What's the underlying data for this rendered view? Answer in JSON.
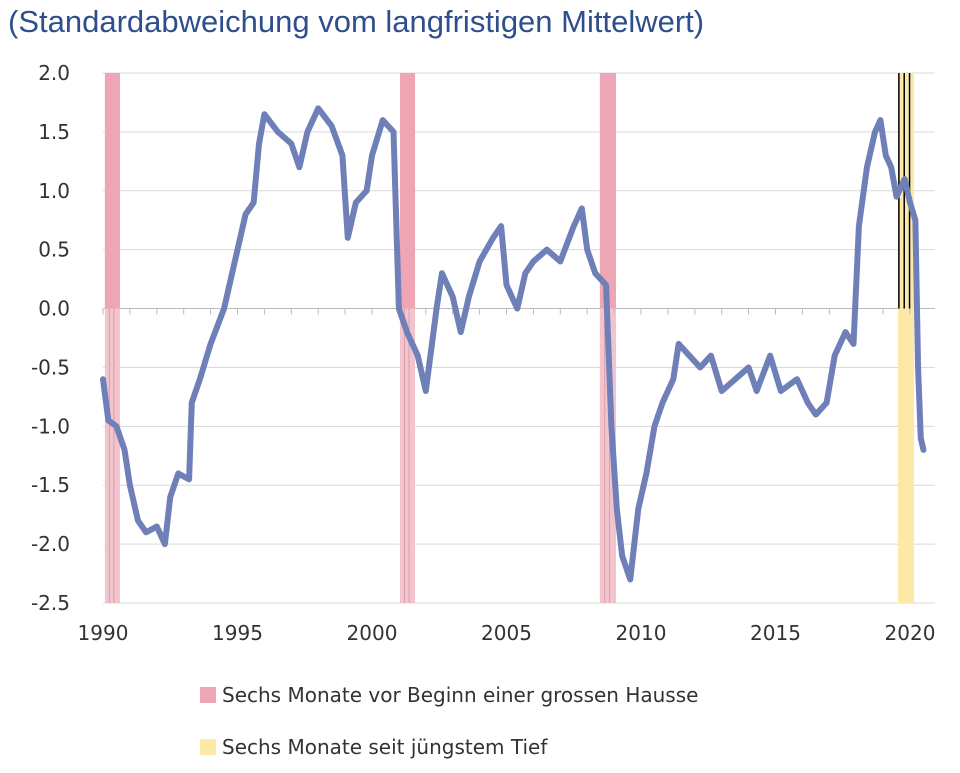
{
  "chart_data": {
    "type": "line",
    "title": "(Standardabweichung vom langfristigen Mittelwert)",
    "xlabel": "",
    "ylabel": "",
    "xlim": [
      1990,
      2020.9
    ],
    "ylim": [
      -2.5,
      2.0
    ],
    "x_ticks": [
      "1990",
      "1995",
      "2000",
      "2005",
      "2010",
      "2015",
      "2020"
    ],
    "y_ticks": [
      "2.0",
      "1.5",
      "1.0",
      "0.5",
      "0.0",
      "-0.5",
      "-1.0",
      "-1.5",
      "-2.0",
      "-2.5"
    ],
    "grid": "horizontal",
    "line_color": "#6f7fb8",
    "series": [
      {
        "x": [
          1990.0,
          1990.2,
          1990.5,
          1990.8,
          1991.0,
          1991.3,
          1991.6,
          1992.0,
          1992.3,
          1992.5,
          1992.8,
          1993.2,
          1993.3,
          1993.6,
          1994.0,
          1994.5,
          1995.0,
          1995.3,
          1995.6,
          1995.8,
          1996.0,
          1996.5,
          1997.0,
          1997.3,
          1997.6,
          1998.0,
          1998.5,
          1998.9,
          1999.1,
          1999.4,
          1999.8,
          2000.0,
          2000.4,
          2000.8,
          2001.0,
          2001.3,
          2001.7,
          2002.0,
          2002.4,
          2002.6,
          2003.0,
          2003.3,
          2003.6,
          2004.0,
          2004.5,
          2004.8,
          2005.0,
          2005.4,
          2005.7,
          2006.0,
          2006.5,
          2007.0,
          2007.5,
          2007.8,
          2008.0,
          2008.3,
          2008.7,
          2008.9,
          2009.1,
          2009.3,
          2009.6,
          2009.9,
          2010.2,
          2010.5,
          2010.8,
          2011.2,
          2011.4,
          2011.8,
          2012.2,
          2012.6,
          2013.0,
          2013.5,
          2014.0,
          2014.3,
          2014.8,
          2015.2,
          2015.8,
          2016.2,
          2016.5,
          2016.9,
          2017.2,
          2017.6,
          2017.9,
          2018.1,
          2018.4,
          2018.7,
          2018.9,
          2019.1,
          2019.3,
          2019.5,
          2019.8,
          2020.0,
          2020.2,
          2020.3,
          2020.4,
          2020.5
        ],
        "y": [
          -0.6,
          -0.95,
          -1.0,
          -1.2,
          -1.5,
          -1.8,
          -1.9,
          -1.85,
          -2.0,
          -1.6,
          -1.4,
          -1.45,
          -0.8,
          -0.6,
          -0.3,
          0.0,
          0.5,
          0.8,
          0.9,
          1.4,
          1.65,
          1.5,
          1.4,
          1.2,
          1.5,
          1.7,
          1.55,
          1.3,
          0.6,
          0.9,
          1.0,
          1.3,
          1.6,
          1.5,
          0.0,
          -0.2,
          -0.4,
          -0.7,
          0.0,
          0.3,
          0.1,
          -0.2,
          0.1,
          0.4,
          0.6,
          0.7,
          0.2,
          0.0,
          0.3,
          0.4,
          0.5,
          0.4,
          0.7,
          0.85,
          0.5,
          0.3,
          0.2,
          -1.0,
          -1.7,
          -2.1,
          -2.3,
          -1.7,
          -1.4,
          -1.0,
          -0.8,
          -0.6,
          -0.3,
          -0.4,
          -0.5,
          -0.4,
          -0.7,
          -0.6,
          -0.5,
          -0.7,
          -0.4,
          -0.7,
          -0.6,
          -0.8,
          -0.9,
          -0.8,
          -0.4,
          -0.2,
          -0.3,
          0.7,
          1.2,
          1.5,
          1.6,
          1.3,
          1.2,
          0.95,
          1.1,
          0.9,
          0.75,
          -0.5,
          -1.1,
          -1.2
        ]
      }
    ],
    "shaded_periods": [
      {
        "type": "pre_hausse",
        "start": 1990.07,
        "end": 1990.63,
        "color": "#eea6b4"
      },
      {
        "type": "pre_hausse",
        "start": 2001.04,
        "end": 2001.6,
        "color": "#eea6b4"
      },
      {
        "type": "pre_hausse",
        "start": 2008.47,
        "end": 2009.07,
        "color": "#eea6b4"
      },
      {
        "type": "since_low",
        "start": 2019.55,
        "end": 2020.15,
        "color": "#fce9a8"
      }
    ],
    "legend": [
      {
        "label": "Sechs Monate vor Beginn einer grossen Hausse",
        "color": "#eea6b4"
      },
      {
        "label": "Sechs Monate seit jüngstem Tief",
        "color": "#fce9a8"
      }
    ],
    "legend_placement": "bottom"
  }
}
